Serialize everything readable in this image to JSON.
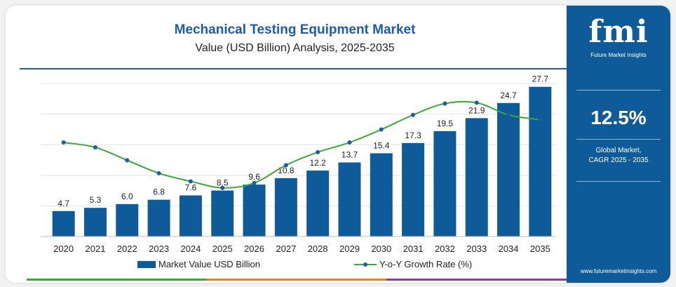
{
  "chart_data": {
    "type": "bar",
    "title": "Mechanical Testing Equipment Market",
    "subtitle": "Value (USD Billion) Analysis, 2025-2035",
    "categories": [
      "2020",
      "2021",
      "2022",
      "2023",
      "2024",
      "2025",
      "2026",
      "2027",
      "2028",
      "2029",
      "2030",
      "2031",
      "2032",
      "2033",
      "2034",
      "2035"
    ],
    "series": [
      {
        "name": "Market Value USD Billion",
        "type": "bar",
        "values": [
          4.7,
          5.3,
          6.0,
          6.8,
          7.6,
          8.5,
          9.6,
          10.8,
          12.2,
          13.7,
          15.4,
          17.3,
          19.5,
          21.9,
          24.7,
          27.7
        ],
        "data_labels": [
          "4.7",
          "5.3",
          "6.0",
          "6.8",
          "7.6",
          "8.5",
          "9.6",
          "10.8",
          "12.2",
          "13.7",
          "15.4",
          "17.3",
          "19.5",
          "21.9",
          "24.7",
          "27.7"
        ]
      },
      {
        "name": "Y-o-Y Growth Rate (%)",
        "type": "line",
        "values": [
          12.8,
          12.5,
          11.7,
          10.9,
          10.4,
          10.0,
          10.3,
          11.4,
          12.2,
          12.8,
          13.6,
          14.5,
          15.2,
          15.25,
          14.5,
          14.2
        ]
      }
    ],
    "ylim": [
      0,
      30
    ],
    "y2lim": [
      7,
      17
    ],
    "grid": true,
    "legend": "bottom"
  },
  "side_panel": {
    "logo_text": "fmi",
    "logo_tagline": "Future Market Insights",
    "cagr_value": "12.5%",
    "cagr_label_line1": "Global Market,",
    "cagr_label_line2": "CAGR 2025 - 2035",
    "website": "www.futuremarketinsights.com"
  },
  "colors": {
    "bar": "#0f5a99",
    "line": "#3aaa35",
    "marker": "#1e5ba8",
    "title": "#1e5ba8",
    "panel": "#0f5a99",
    "strip": [
      "#3aaa35",
      "#f07f1e",
      "#8b3d9b"
    ]
  }
}
